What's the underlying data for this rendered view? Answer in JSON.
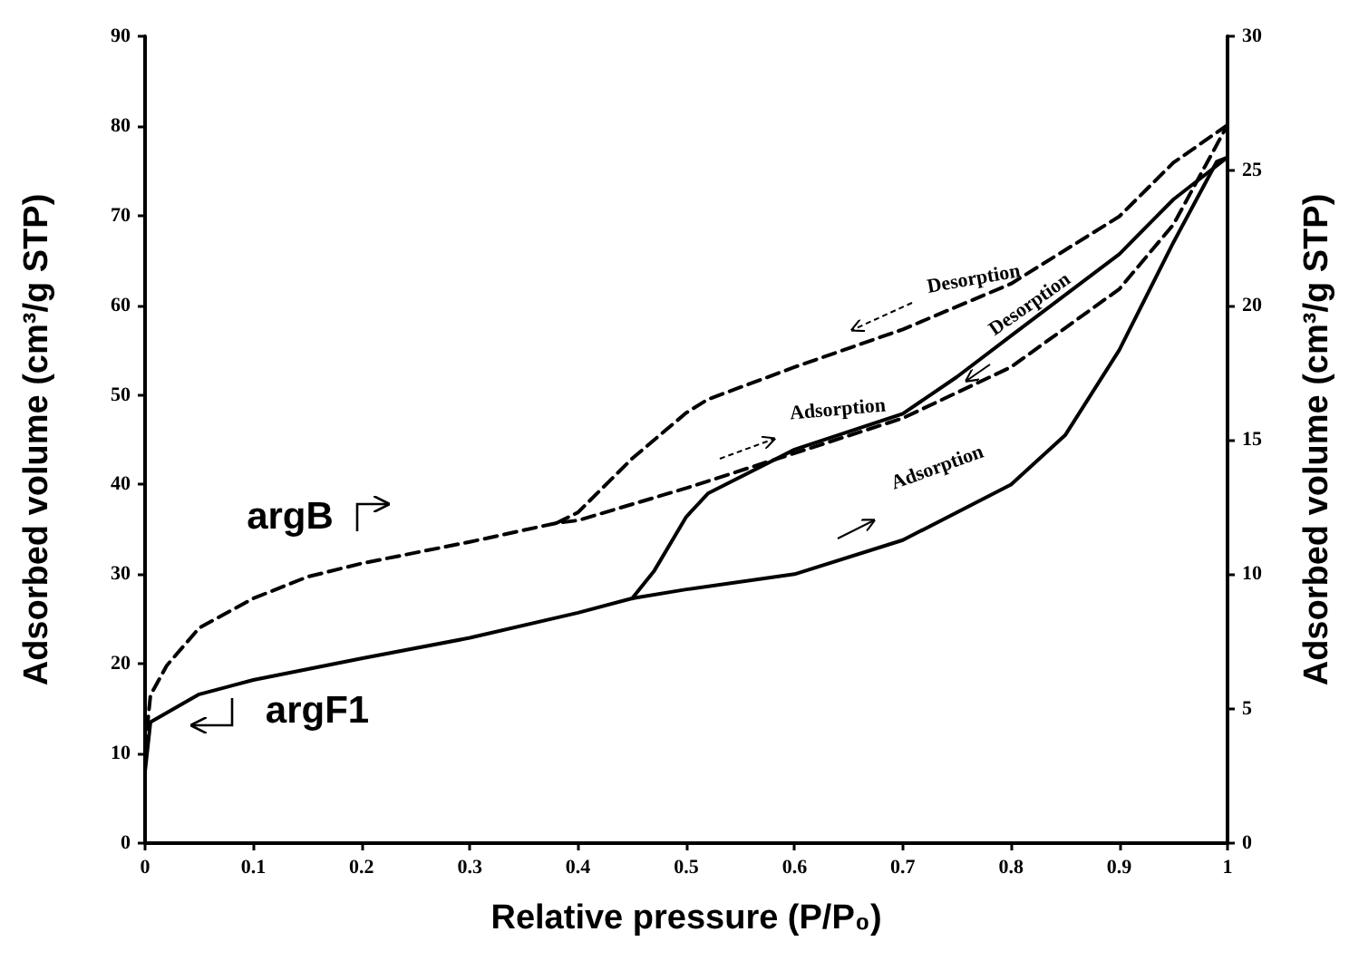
{
  "chart_data": {
    "type": "line",
    "xlabel": "Relative pressure (P/P₀)",
    "ylabel": "Adsorbed volume (cm³/g STP)",
    "y2label": "Adsorbed volume (cm³/g STP)",
    "xlim": [
      0,
      1
    ],
    "xticks": [
      0,
      0.1,
      0.2,
      0.3,
      0.4,
      0.5,
      0.6,
      0.7,
      0.8,
      0.9,
      1
    ],
    "ylim": [
      0,
      90
    ],
    "yticks": [
      0,
      10,
      20,
      30,
      40,
      50,
      60,
      70,
      80,
      90
    ],
    "y2lim": [
      0,
      30
    ],
    "y2ticks": [
      0,
      5,
      10,
      15,
      20,
      25,
      30
    ],
    "grid": false,
    "marker": "none",
    "series": [
      {
        "color": "#000000",
        "line_style": "solid",
        "x": [
          0,
          0.005,
          0.05,
          0.1,
          0.2,
          0.3,
          0.4,
          0.45,
          0.5,
          0.6,
          0.7,
          0.8,
          0.85,
          0.9,
          0.95,
          0.99,
          1
        ],
        "values": [
          8,
          13.5,
          16.6,
          18.2,
          20.6,
          22.9,
          25.7,
          27.3,
          28.3,
          30,
          33.8,
          40,
          45.5,
          55,
          67,
          76,
          76.5
        ]
      },
      {
        "color": "#000000",
        "line_style": "solid",
        "x": [
          1,
          0.95,
          0.9,
          0.8,
          0.75,
          0.7,
          0.6,
          0.52,
          0.5,
          0.47,
          0.45
        ],
        "values": [
          76.5,
          71.8,
          65.7,
          56.6,
          52,
          47.9,
          43.9,
          39,
          36.4,
          30.3,
          27.3
        ]
      },
      {
        "color": "#000000",
        "line_style": "dashed",
        "axis": "y2",
        "x": [
          0,
          0.005,
          0.02,
          0.05,
          0.1,
          0.15,
          0.2,
          0.3,
          0.38,
          0.4,
          0.5,
          0.6,
          0.7,
          0.8,
          0.9,
          0.95,
          1
        ],
        "values": [
          3.5,
          5.5,
          6.6,
          8,
          9.1,
          9.9,
          10.4,
          11.2,
          11.9,
          12,
          13.2,
          14.5,
          15.8,
          17.7,
          20.6,
          23,
          26.7
        ]
      },
      {
        "color": "#000000",
        "line_style": "dashed",
        "axis": "y2",
        "x": [
          1,
          0.95,
          0.9,
          0.8,
          0.7,
          0.6,
          0.52,
          0.5,
          0.45,
          0.4,
          0.38
        ],
        "values": [
          26.7,
          25.3,
          23.3,
          20.8,
          19.1,
          17.7,
          16.5,
          16,
          14.3,
          12.3,
          11.9
        ]
      }
    ],
    "annotations": [
      "argB",
      "argF1",
      "Desorption",
      "Desorption",
      "Adsorption",
      "Adsorption"
    ]
  }
}
